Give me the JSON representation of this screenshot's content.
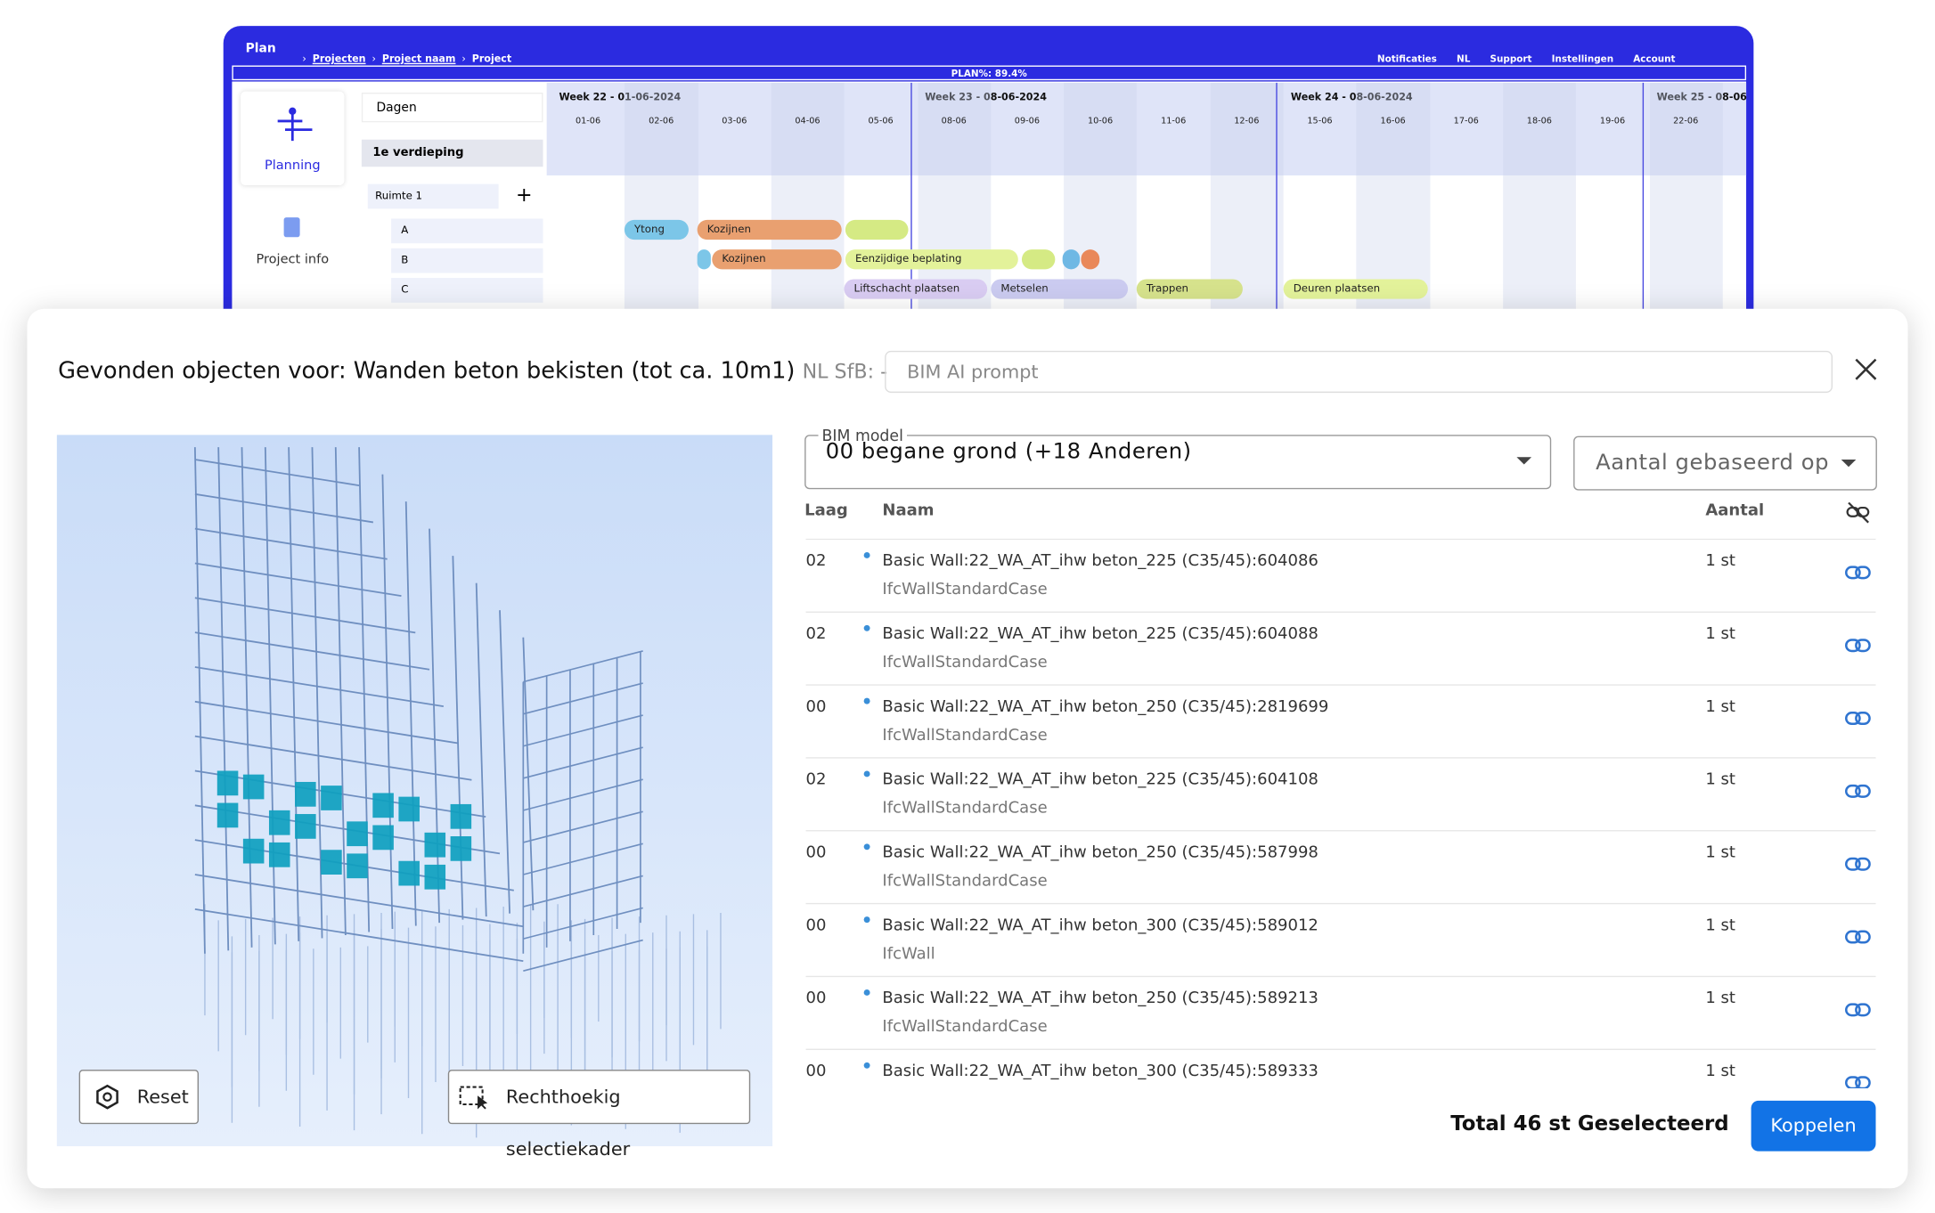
{
  "topbar": {
    "logo": "Plan",
    "breadcrumbs": [
      "Projecten",
      "Project naam",
      "Project"
    ],
    "nav": [
      "Notificaties",
      "NL",
      "Support",
      "Instellingen",
      "Account"
    ],
    "plan": "PLAN%: 89.4%"
  },
  "sidebar": [
    "Planning",
    "Project info"
  ],
  "gantt": {
    "view": "Dagen",
    "floor": "1e verdieping",
    "room": "Ruimte 1",
    "rows": [
      "A",
      "B",
      "C"
    ],
    "weeks": [
      {
        "label": "Week 22 - 01-06-2024",
        "days": [
          "01-06",
          "02-06",
          "03-06",
          "04-06",
          "05-06"
        ]
      },
      {
        "label": "Week 23 - 08-06-2024",
        "days": [
          "08-06",
          "09-06",
          "10-06",
          "11-06",
          "12-06"
        ]
      },
      {
        "label": "Week 24 - 08-06-2024",
        "days": [
          "15-06",
          "16-06",
          "17-06",
          "18-06",
          "19-06"
        ]
      },
      {
        "label": "Week 25 - 08-06",
        "days": [
          "22-06"
        ]
      }
    ],
    "tasks": [
      "Ytong",
      "Kozijnen",
      "Kozijnen",
      "Eenzijdige beplating",
      "Liftschacht plaatsen",
      "Metselen",
      "Trappen",
      "Deuren plaatsen"
    ]
  },
  "modal": {
    "title_prefix": "Gevonden objecten voor:",
    "title": "Wanden beton bekisten (tot ca. 10m1)",
    "sfb": "NL SfB: -",
    "prompt": "BIM AI prompt",
    "bim_model_label": "BIM model",
    "bim_model": "00 begane grond (+18 Anderen)",
    "aantal": "Aantal gebaseerd op",
    "columns": [
      "Laag",
      "Naam",
      "Aantal"
    ],
    "rows": [
      {
        "layer": "02",
        "name": "Basic Wall:22_WA_AT_ihw beton_225 (C35/45):604086",
        "type": "IfcWallStandardCase",
        "count": "1 st"
      },
      {
        "layer": "02",
        "name": "Basic Wall:22_WA_AT_ihw beton_225 (C35/45):604088",
        "type": "IfcWallStandardCase",
        "count": "1 st"
      },
      {
        "layer": "00",
        "name": "Basic Wall:22_WA_AT_ihw beton_250 (C35/45):2819699",
        "type": "IfcWallStandardCase",
        "count": "1 st"
      },
      {
        "layer": "02",
        "name": "Basic Wall:22_WA_AT_ihw beton_225 (C35/45):604108",
        "type": "IfcWallStandardCase",
        "count": "1 st"
      },
      {
        "layer": "00",
        "name": "Basic Wall:22_WA_AT_ihw beton_250 (C35/45):587998",
        "type": "IfcWallStandardCase",
        "count": "1 st"
      },
      {
        "layer": "00",
        "name": "Basic Wall:22_WA_AT_ihw beton_300 (C35/45):589012",
        "type": "IfcWall",
        "count": "1 st"
      },
      {
        "layer": "00",
        "name": "Basic Wall:22_WA_AT_ihw beton_250 (C35/45):589213",
        "type": "IfcWallStandardCase",
        "count": "1 st"
      },
      {
        "layer": "00",
        "name": "Basic Wall:22_WA_AT_ihw beton_300 (C35/45):589333",
        "count": "1 st"
      }
    ],
    "reset": "Reset",
    "rect_select": "Rechthoekig selectiekader",
    "total": "Total 46 st Geselecteerd",
    "submit": "Koppelen"
  }
}
